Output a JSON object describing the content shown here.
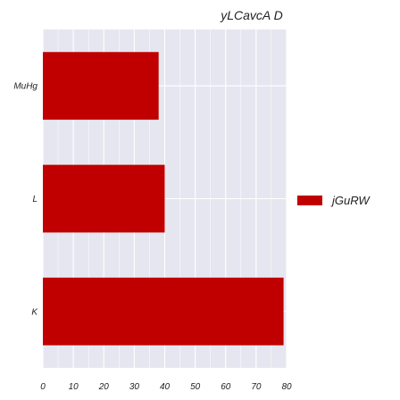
{
  "chart_data": {
    "type": "bar",
    "orientation": "horizontal",
    "title": "yLCavcA D",
    "xlabel": "",
    "ylabel": "",
    "categories": [
      "MuHg",
      "L",
      "K"
    ],
    "series": [
      {
        "name": "jGuRW",
        "values": [
          38,
          40,
          79
        ]
      }
    ],
    "xlim": [
      0,
      80
    ],
    "xticks": [
      0,
      10,
      20,
      30,
      40,
      50,
      60,
      70,
      80
    ],
    "grid": true,
    "legend_position": "right",
    "colors": {
      "bar": "#c00000",
      "plot_background": "#e6e6f0",
      "grid": "#ffffff"
    }
  }
}
